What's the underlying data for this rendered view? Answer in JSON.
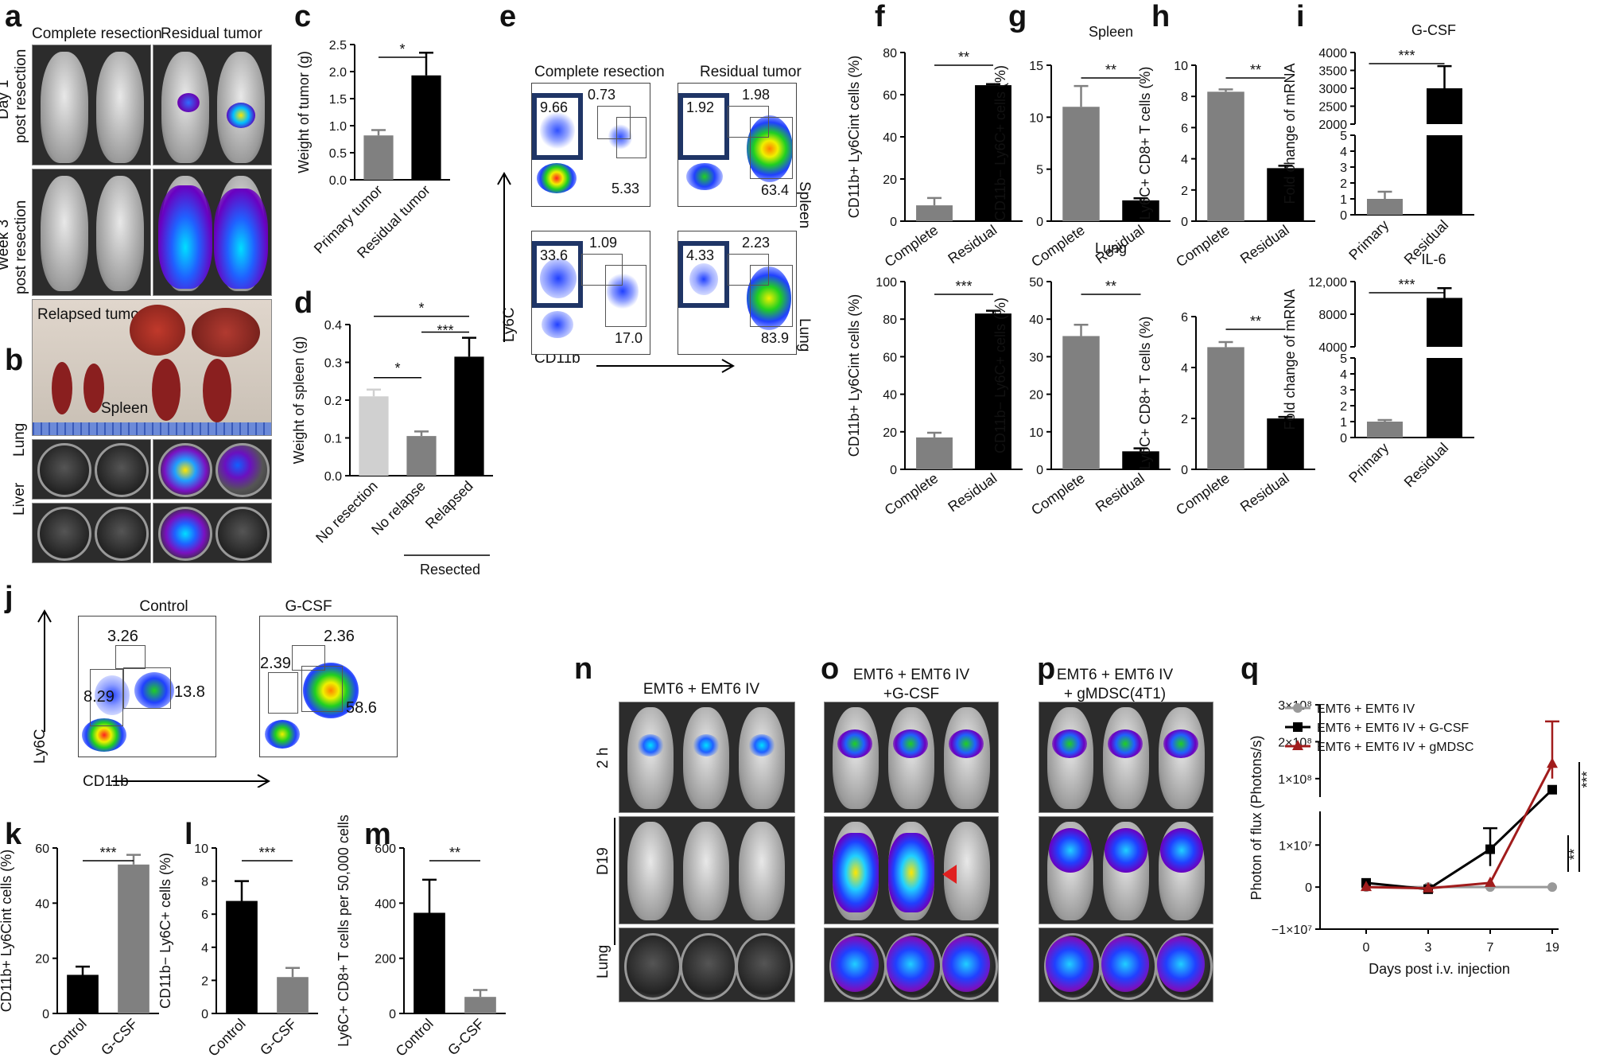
{
  "panel_letters": [
    "a",
    "b",
    "c",
    "d",
    "e",
    "f",
    "g",
    "h",
    "i",
    "j",
    "k",
    "l",
    "m",
    "n",
    "o",
    "p",
    "q"
  ],
  "panel_a": {
    "col_complete": "Complete resection",
    "col_residual": "Residual tumor",
    "row_day1": [
      "Day 1",
      "post resection"
    ],
    "row_week3": [
      "Week 3",
      "post resection"
    ],
    "relapsed": "Relapsed tumor",
    "spleen": "Spleen"
  },
  "panel_b": {
    "row_lung": "Lung",
    "row_liver": "Liver"
  },
  "panel_e": {
    "col_complete": "Complete resection",
    "col_residual": "Residual tumor",
    "row_spleen": "Spleen",
    "row_lung": "Lung",
    "y_axis": "Ly6C",
    "x_axis": "CD11b",
    "gates": [
      [
        "9.66",
        "0.73",
        "5.33"
      ],
      [
        "1.92",
        "1.98",
        "63.4"
      ],
      [
        "33.6",
        "1.09",
        "17.0"
      ],
      [
        "4.33",
        "2.23",
        "83.9"
      ]
    ]
  },
  "panel_j": {
    "col_control": "Control",
    "col_gcsf": "G-CSF",
    "y_axis": "Ly6C",
    "x_axis": "CD11b",
    "gates_control": [
      "3.26",
      "8.29",
      "13.8"
    ],
    "gates_gcsf": [
      "2.36",
      "2.39",
      "58.6"
    ]
  },
  "panel_n": {
    "title": "EMT6 + EMT6 IV",
    "row_2h": "2 h",
    "row_d19": "D19",
    "row_lung": "Lung"
  },
  "panel_o": {
    "title": [
      "EMT6 + EMT6 IV",
      "+G-CSF"
    ]
  },
  "panel_p": {
    "title": [
      "EMT6 + EMT6 IV",
      "+ gMDSC(4T1)"
    ]
  },
  "colors": {
    "dark": "#000000",
    "gray": "#808080",
    "light": "#d0d0d0",
    "red": "#a11c1c",
    "gate_blue": "#1f3566"
  },
  "chart_data": [
    {
      "id": "c",
      "type": "bar",
      "categories": [
        "Primary tumor",
        "Residual tumor"
      ],
      "values": [
        0.82,
        1.93
      ],
      "errors": [
        0.1,
        0.42
      ],
      "ylabel": "Weight of tumor (g)",
      "ylim": [
        0,
        2.5
      ],
      "yticks": [
        "0.0",
        "0.5",
        "1.0",
        "1.5",
        "2.0",
        "2.5"
      ],
      "sig": [
        "*"
      ],
      "colors": [
        "#808080",
        "#000000"
      ]
    },
    {
      "id": "d",
      "type": "bar",
      "categories": [
        "No resection",
        "No relapse",
        "Relapsed"
      ],
      "values": [
        0.21,
        0.105,
        0.315
      ],
      "errors": [
        0.018,
        0.012,
        0.05
      ],
      "ylabel": "Weight of spleen (g)",
      "ylim": [
        0,
        0.4
      ],
      "yticks": [
        "0.0",
        "0.1",
        "0.2",
        "0.3",
        "0.4"
      ],
      "sig": [
        "*",
        "***",
        "*"
      ],
      "group_label": "Resected",
      "colors": [
        "#d0d0d0",
        "#808080",
        "#000000"
      ]
    },
    {
      "id": "f1",
      "type": "bar",
      "categories": [
        "Complete",
        "Residual"
      ],
      "values": [
        7.5,
        64.5
      ],
      "errors": [
        3.5,
        0.5
      ],
      "ylabel": "CD11b+ Ly6Cint cells (%)",
      "ylim": [
        0,
        80
      ],
      "yticks": [
        "0",
        "20",
        "40",
        "60",
        "80"
      ],
      "sig": [
        "**"
      ],
      "colors": [
        "#808080",
        "#000000"
      ]
    },
    {
      "id": "f2",
      "type": "bar",
      "categories": [
        "Complete",
        "Residual"
      ],
      "values": [
        17,
        83
      ],
      "errors": [
        2.5,
        1.5
      ],
      "ylabel": "CD11b+ Ly6Cint cells (%)",
      "ylim": [
        0,
        100
      ],
      "yticks": [
        "0",
        "20",
        "40",
        "60",
        "80",
        "100"
      ],
      "sig": [
        "***"
      ],
      "colors": [
        "#808080",
        "#000000"
      ]
    },
    {
      "id": "g1",
      "type": "bar",
      "title": "Spleen",
      "categories": [
        "Complete",
        "Residual"
      ],
      "values": [
        11,
        2
      ],
      "errors": [
        2,
        0.2
      ],
      "ylabel": "CD11b− Ly6C+ cells (%)",
      "ylim": [
        0,
        15
      ],
      "yticks": [
        "0",
        "5",
        "10",
        "15"
      ],
      "sig": [
        "**"
      ],
      "colors": [
        "#808080",
        "#000000"
      ]
    },
    {
      "id": "g2",
      "type": "bar",
      "title": "Lung",
      "categories": [
        "Complete",
        "Residual"
      ],
      "values": [
        35.5,
        4.8
      ],
      "errors": [
        3,
        0.8
      ],
      "ylabel": "CD11b− Ly6C+ cells (%)",
      "ylim": [
        0,
        50
      ],
      "yticks": [
        "0",
        "10",
        "20",
        "30",
        "40",
        "50"
      ],
      "sig": [
        "**"
      ],
      "colors": [
        "#808080",
        "#000000"
      ]
    },
    {
      "id": "h1",
      "type": "bar",
      "categories": [
        "Complete",
        "Residual"
      ],
      "values": [
        8.3,
        3.4
      ],
      "errors": [
        0.15,
        0.15
      ],
      "ylabel": "Ly6C+ CD8+ T cells (%)",
      "ylim": [
        0,
        10
      ],
      "yticks": [
        "0",
        "2",
        "4",
        "6",
        "8",
        "10"
      ],
      "sig": [
        "**"
      ],
      "colors": [
        "#808080",
        "#000000"
      ]
    },
    {
      "id": "h2",
      "type": "bar",
      "categories": [
        "Complete",
        "Residual"
      ],
      "values": [
        4.8,
        2.0
      ],
      "errors": [
        0.2,
        0.06
      ],
      "ylabel": "Ly6C+ CD8+ T cells (%)",
      "ylim": [
        0,
        6
      ],
      "yticks": [
        "0",
        "2",
        "4",
        "6"
      ],
      "sig": [
        "**"
      ],
      "colors": [
        "#808080",
        "#000000"
      ]
    },
    {
      "id": "i1",
      "type": "bar",
      "title": "G-CSF",
      "categories": [
        "Primary",
        "Residual"
      ],
      "values": [
        1,
        3000
      ],
      "errors": [
        0.45,
        620
      ],
      "ylabel": "Fold change of mRNA",
      "broken_axis": true,
      "yticks_low": [
        "0",
        "1",
        "2",
        "3",
        "4",
        "5"
      ],
      "yticks_high": [
        "2000",
        "2500",
        "3000",
        "3500",
        "4000"
      ],
      "sig": [
        "***"
      ],
      "colors": [
        "#808080",
        "#000000"
      ]
    },
    {
      "id": "i2",
      "type": "bar",
      "title": "IL-6",
      "categories": [
        "Primary",
        "Residual"
      ],
      "values": [
        1,
        9000
      ],
      "errors": [
        0.1,
        1800
      ],
      "ylabel": "Fold change of mRNA",
      "broken_axis": true,
      "yticks_low": [
        "0",
        "1",
        "2",
        "3",
        "4",
        "5"
      ],
      "yticks_high": [
        "4000",
        "8000",
        "12,000"
      ],
      "sig": [
        "***"
      ],
      "colors": [
        "#808080",
        "#000000"
      ]
    },
    {
      "id": "k",
      "type": "bar",
      "categories": [
        "Control",
        "G-CSF"
      ],
      "values": [
        14,
        54
      ],
      "errors": [
        3,
        3.5
      ],
      "ylabel": "CD11b+ Ly6Cint cells (%)",
      "ylim": [
        0,
        60
      ],
      "yticks": [
        "0",
        "20",
        "40",
        "60"
      ],
      "sig": [
        "***"
      ],
      "colors": [
        "#000000",
        "#808080"
      ]
    },
    {
      "id": "l",
      "type": "bar",
      "categories": [
        "Control",
        "G-CSF"
      ],
      "values": [
        6.8,
        2.2
      ],
      "errors": [
        1.2,
        0.55
      ],
      "ylabel": "CD11b− Ly6C+ cells (%)",
      "ylim": [
        0,
        10
      ],
      "yticks": [
        "0",
        "2",
        "4",
        "6",
        "8",
        "10"
      ],
      "sig": [
        "***"
      ],
      "colors": [
        "#000000",
        "#808080"
      ]
    },
    {
      "id": "m",
      "type": "bar",
      "categories": [
        "Control",
        "G-CSF"
      ],
      "values": [
        365,
        60
      ],
      "errors": [
        120,
        25
      ],
      "ylabel": "Ly6C+ CD8+ T cells per 50,000 cells",
      "ylim": [
        0,
        600
      ],
      "yticks": [
        "0",
        "200",
        "400",
        "600"
      ],
      "sig": [
        "**"
      ],
      "colors": [
        "#000000",
        "#808080"
      ]
    },
    {
      "id": "q",
      "type": "line",
      "x": [
        0,
        3,
        7,
        19
      ],
      "xticks": [
        "0",
        "3",
        "7",
        "19"
      ],
      "xlabel": "Days post i.v. injection",
      "ylabel": "Photon of flux (Photons/s)",
      "yticks_low": [
        "−1×10⁷",
        "0",
        "1×10⁷"
      ],
      "yticks_high": [
        "1×10⁸",
        "2×10⁸",
        "3×10⁸"
      ],
      "series": [
        {
          "name": "EMT6 + EMT6 IV",
          "color": "#999999",
          "marker": "circle",
          "values": [
            0,
            0,
            0,
            0
          ]
        },
        {
          "name": "EMT6 + EMT6 IV + G-CSF",
          "color": "#000000",
          "marker": "square",
          "values": [
            1000000,
            -500000,
            9000000,
            70000000
          ]
        },
        {
          "name": "EMT6 + EMT6 IV + gMDSC",
          "color": "#a11c1c",
          "marker": "triangle",
          "values": [
            0,
            -300000,
            1000000,
            140000000
          ]
        }
      ],
      "sig": [
        "**",
        "***"
      ]
    }
  ]
}
